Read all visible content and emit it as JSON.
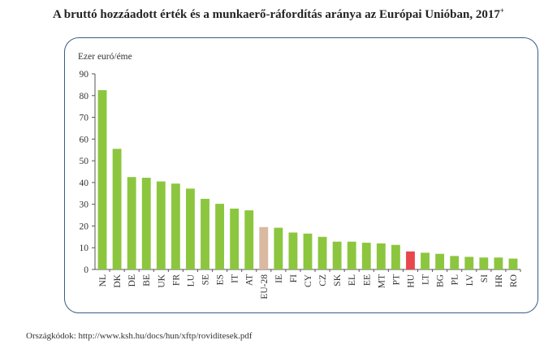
{
  "page": {
    "title": "A bruttó hozzáadott érték és a munkaerő-ráfordítás aránya az Európai Unióban, 2017",
    "title_mark": "+",
    "source": "Országkódok: http://www.ksh.hu/docs/hun/xftp/roviditesek.pdf"
  },
  "chart_data": {
    "type": "bar",
    "ylabel": "Ezer euró/éme",
    "ylim": [
      0,
      90
    ],
    "yticks": [
      0,
      10,
      20,
      30,
      40,
      50,
      60,
      70,
      80,
      90
    ],
    "grid": false,
    "legend": "none",
    "categories": [
      "NL",
      "DK",
      "DE",
      "BE",
      "UK",
      "FR",
      "LU",
      "SE",
      "ES",
      "IT",
      "AT",
      "EU-28",
      "IE",
      "FI",
      "CY",
      "CZ",
      "SK",
      "EL",
      "EE",
      "MT",
      "PT",
      "HU",
      "LT",
      "BG",
      "PL",
      "LV",
      "SI",
      "HR",
      "RO"
    ],
    "values": [
      82.5,
      55.5,
      42.5,
      42.2,
      40.5,
      39.5,
      37.2,
      32.5,
      30.2,
      28,
      27.2,
      19.5,
      19.2,
      17,
      16.5,
      15,
      12.8,
      12.8,
      12.3,
      12,
      11.3,
      8.3,
      7.7,
      7.2,
      6.2,
      5.8,
      5.5,
      5.5,
      5
    ],
    "colors": {
      "default": "#8cc63f",
      "highlight": {
        "EU-28": "#d9b9a0",
        "HU": "#e8474b"
      },
      "axis": "#555555",
      "frame": "#3b5b83"
    }
  }
}
